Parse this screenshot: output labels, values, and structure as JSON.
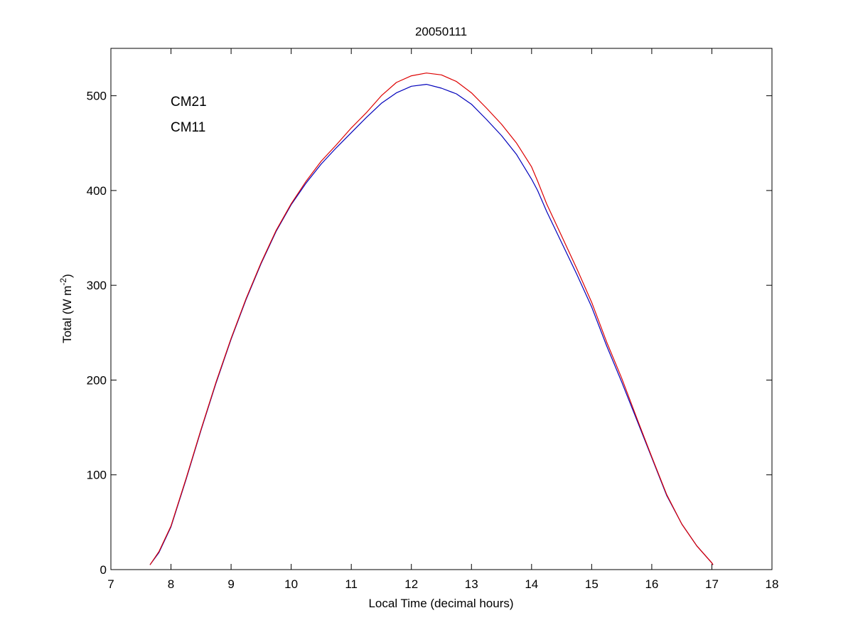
{
  "chart_data": {
    "type": "line",
    "title": "20050111",
    "xlabel": "Local Time (decimal hours)",
    "ylabel_main": "Total (W m",
    "ylabel_sup": "-2",
    "ylabel_close": ")",
    "xlim": [
      7,
      18
    ],
    "ylim": [
      0,
      550
    ],
    "xticks": [
      "7",
      "8",
      "9",
      "10",
      "11",
      "12",
      "13",
      "14",
      "15",
      "16",
      "17",
      "18"
    ],
    "yticks": [
      "0",
      "100",
      "200",
      "300",
      "400",
      "500"
    ],
    "xtick_values": [
      7,
      8,
      9,
      10,
      11,
      12,
      13,
      14,
      15,
      16,
      17,
      18
    ],
    "ytick_values": [
      0,
      100,
      200,
      300,
      400,
      500
    ],
    "grid": false,
    "legend_placement": "top-left",
    "series": [
      {
        "name": "CM21",
        "color": "#0000bb",
        "x": [
          7.65,
          7.8,
          8.0,
          8.25,
          8.5,
          8.75,
          9.0,
          9.25,
          9.5,
          9.75,
          10.0,
          10.25,
          10.5,
          10.75,
          11.0,
          11.25,
          11.5,
          11.75,
          12.0,
          12.25,
          12.5,
          12.75,
          13.0,
          13.25,
          13.5,
          13.75,
          14.0,
          14.1,
          14.25,
          14.5,
          14.75,
          15.0,
          15.25,
          15.5,
          15.75,
          16.0,
          16.25,
          16.5,
          16.75,
          17.0,
          17.02
        ],
        "y": [
          5,
          18,
          45,
          95,
          147,
          197,
          243,
          285,
          323,
          357,
          385,
          408,
          428,
          445,
          461,
          477,
          492,
          503,
          510,
          512,
          508,
          502,
          491,
          475,
          458,
          438,
          412,
          400,
          378,
          345,
          312,
          277,
          236,
          198,
          158,
          118,
          78,
          48,
          25,
          7,
          5
        ]
      },
      {
        "name": "CM11",
        "color": "#dd0000",
        "x": [
          7.65,
          7.8,
          8.0,
          8.25,
          8.5,
          8.75,
          9.0,
          9.25,
          9.5,
          9.75,
          10.0,
          10.25,
          10.5,
          10.75,
          11.0,
          11.25,
          11.5,
          11.75,
          12.0,
          12.25,
          12.5,
          12.75,
          13.0,
          13.25,
          13.5,
          13.75,
          14.0,
          14.1,
          14.25,
          14.5,
          14.75,
          15.0,
          15.25,
          15.5,
          15.75,
          16.0,
          16.25,
          16.5,
          16.75,
          17.0,
          17.02
        ],
        "y": [
          5,
          19,
          46,
          96,
          148,
          198,
          244,
          286,
          324,
          358,
          386,
          410,
          431,
          448,
          466,
          482,
          500,
          514,
          521,
          524,
          522,
          515,
          503,
          487,
          470,
          450,
          425,
          410,
          386,
          352,
          318,
          282,
          240,
          202,
          160,
          119,
          79,
          48,
          25,
          7,
          5
        ]
      }
    ]
  }
}
